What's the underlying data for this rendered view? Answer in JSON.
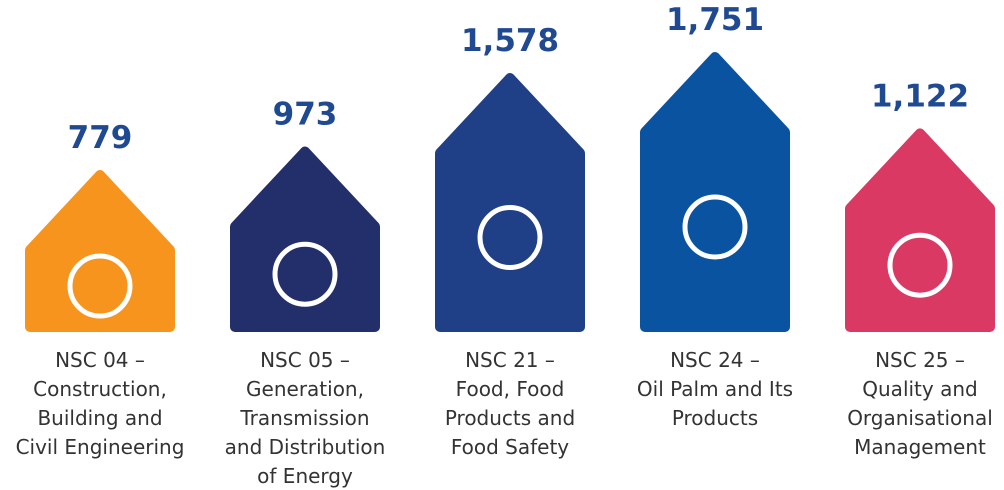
{
  "chart_data": {
    "type": "bar",
    "categories": [
      "NSC 04 –\nConstruction,\nBuilding and\nCivil Engineering",
      "NSC 05 –\nGeneration,\nTransmission\nand Distribution\nof Energy",
      "NSC 21 –\nFood, Food\nProducts and\nFood Safety",
      "NSC 24 –\nOil Palm and Its\nProducts",
      "NSC 25 –\nQuality and\nOrganisational\nManagement"
    ],
    "values": [
      779,
      973,
      1578,
      1751,
      1122
    ],
    "value_labels": [
      "779",
      "973",
      "1,578",
      "1,751",
      "1,122"
    ],
    "colors": [
      "#f7941d",
      "#232f6a",
      "#1f3f86",
      "#0a53a1",
      "#da3963"
    ]
  }
}
